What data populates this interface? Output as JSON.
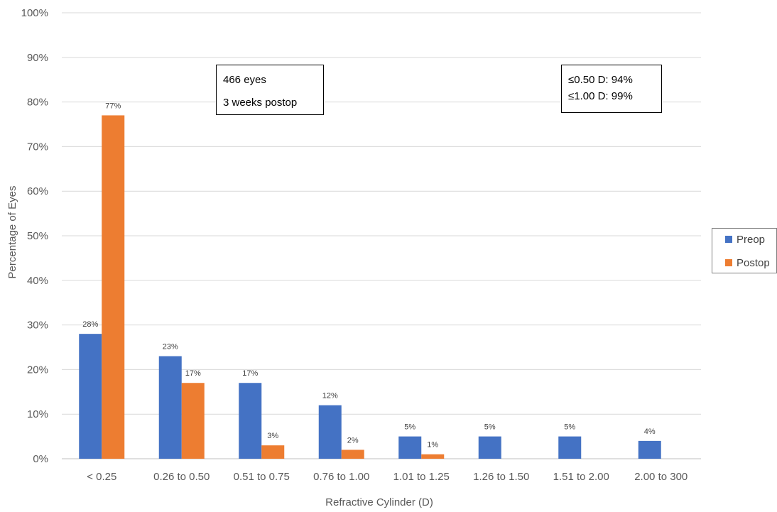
{
  "chart_data": {
    "type": "bar",
    "categories": [
      "< 0.25",
      "0.26 to 0.50",
      "0.51 to 0.75",
      "0.76 to 1.00",
      "1.01 to 1.25",
      "1.26 to 1.50",
      "1.51 to 2.00",
      "2.00 to 300"
    ],
    "series": [
      {
        "name": "Preop",
        "values": [
          28,
          23,
          17,
          12,
          5,
          5,
          5,
          4
        ],
        "labels": [
          "28%",
          "23%",
          "17%",
          "12%",
          "5%",
          "5%",
          "5%",
          "4%"
        ],
        "color": "#4472C4"
      },
      {
        "name": "Postop",
        "values": [
          77,
          17,
          3,
          2,
          1,
          null,
          null,
          null
        ],
        "labels": [
          "77%",
          "17%",
          "3%",
          "2%",
          "1%",
          null,
          null,
          null
        ],
        "color": "#ED7D31"
      }
    ],
    "xlabel": "Refractive Cylinder (D)",
    "ylabel": "Percentage of Eyes",
    "ylim": [
      0,
      100
    ],
    "yticks": [
      "0%",
      "10%",
      "20%",
      "30%",
      "40%",
      "50%",
      "60%",
      "70%",
      "80%",
      "90%",
      "100%"
    ],
    "grid": true,
    "legend_position": "right"
  },
  "annotations": {
    "left_box": [
      "466 eyes",
      "3 weeks postop"
    ],
    "right_box": [
      "≤0.50 D: 94%",
      "≤1.00 D: 99%"
    ]
  },
  "legend": {
    "items": [
      "Preop",
      "Postop"
    ]
  }
}
